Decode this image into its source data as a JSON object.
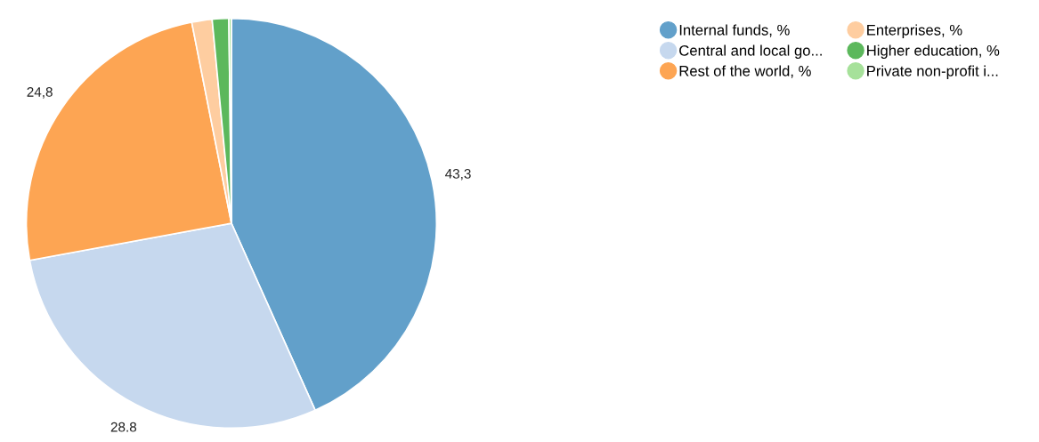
{
  "chart_data": {
    "type": "pie",
    "categories": [
      "Internal funds, %",
      "Central and local go...",
      "Rest of the world, %",
      "Enterprises, %",
      "Higher education, %",
      "Private non-profit i..."
    ],
    "values": [
      43.3,
      28.8,
      24.8,
      1.6,
      1.3,
      0.2
    ],
    "value_labels": [
      "43,3",
      "28.8",
      "24,8",
      null,
      null,
      null
    ],
    "colors": [
      "#62a0ca",
      "#c6d8ee",
      "#fda553",
      "#fecda0",
      "#5cb85c",
      "#a6e19a"
    ],
    "legend": "top right"
  }
}
